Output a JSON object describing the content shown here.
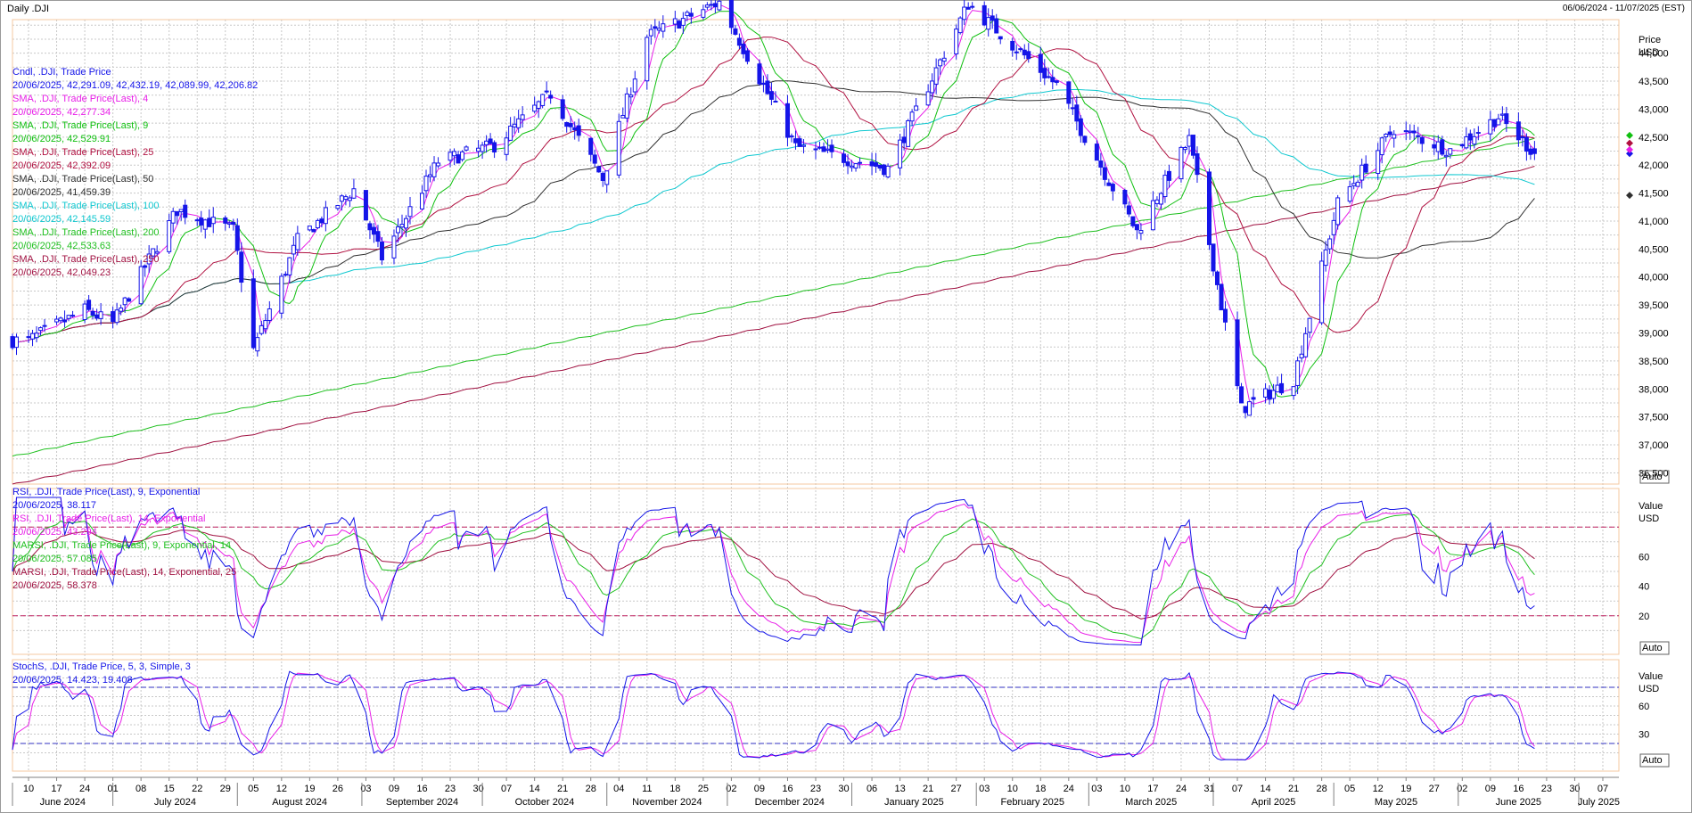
{
  "header": {
    "title": "Daily .DJI",
    "range": "06/06/2024 - 11/07/2025 (EST)"
  },
  "colors": {
    "bg": "#ffffff",
    "grid": "#c8c8c8",
    "candle": "#1515e8",
    "sma4": "#e81ee8",
    "sma9": "#10c010",
    "sma25": "#b01040",
    "sma50": "#303030",
    "sma100": "#10c8d0",
    "sma200": "#20c020",
    "sma250": "#a01040",
    "rsi9": "#1515e8",
    "rsi14": "#e81ee8",
    "marsi9": "#20c020",
    "marsi14": "#a01040",
    "stoch_k": "#1515e8",
    "stoch_d": "#e81ee8",
    "panel_border": "#f4c8a0",
    "ref_line": "#c02060"
  },
  "price_panel": {
    "axis_title": "Price",
    "axis_unit": "USD",
    "auto_label": "Auto",
    "legend": [
      {
        "title": "Cndl, .DJI, Trade Price",
        "value": "20/06/2025, 42,291.09, 42,432.19, 42,089.99, 42,206.82",
        "color": "#1515e8"
      },
      {
        "title": "SMA, .DJI, Trade Price(Last), 4",
        "value": "20/06/2025, 42,277.34",
        "color": "#e81ee8"
      },
      {
        "title": "SMA, .DJI, Trade Price(Last), 9",
        "value": "20/06/2025, 42,529.91",
        "color": "#10c010"
      },
      {
        "title": "SMA, .DJI, Trade Price(Last), 25",
        "value": "20/06/2025, 42,392.09",
        "color": "#b01040"
      },
      {
        "title": "SMA, .DJI, Trade Price(Last), 50",
        "value": "20/06/2025, 41,459.39",
        "color": "#303030"
      },
      {
        "title": "SMA, .DJI, Trade Price(Last), 100",
        "value": "20/06/2025, 42,145.59",
        "color": "#10c8d0"
      },
      {
        "title": "SMA, .DJI, Trade Price(Last), 200",
        "value": "20/06/2025, 42,533.63",
        "color": "#20c020"
      },
      {
        "title": "SMA, .DJI, Trade Price(Last), 250",
        "value": "20/06/2025, 42,049.23",
        "color": "#a01040"
      }
    ],
    "ticks": [
      "44,000",
      "43,500",
      "43,000",
      "42,500",
      "42,000",
      "41,500",
      "41,000",
      "40,500",
      "40,000",
      "39,500",
      "39,000",
      "38,500",
      "38,000",
      "37,500",
      "37,000",
      "36,500"
    ]
  },
  "rsi_panel": {
    "axis_title": "Value",
    "axis_unit": "USD",
    "auto_label": "Auto",
    "legend": [
      {
        "title": "RSI, .DJI, Trade Price(Last), 9, Exponential",
        "value": "20/06/2025, 38.117",
        "color": "#1515e8"
      },
      {
        "title": "RSI, .DJI, Trade Price(Last), 14, Exponential",
        "value": "20/06/2025, 43.294",
        "color": "#e81ee8"
      },
      {
        "title": "MARSI, .DJI, Trade Price(Last), 9, Exponential, 14",
        "value": "20/06/2025, 57.085",
        "color": "#20c020"
      },
      {
        "title": "MARSI, .DJI, Trade Price(Last), 14, Exponential, 25",
        "value": "20/06/2025, 58.378",
        "color": "#a01040"
      }
    ],
    "ticks": [
      "60",
      "40",
      "20"
    ]
  },
  "stoch_panel": {
    "axis_title": "Value",
    "axis_unit": "USD",
    "auto_label": "Auto",
    "legend": [
      {
        "title": "StochS, .DJI, Trade Price, 5, 3, Simple, 3",
        "value": "20/06/2025, 14.423, 19.408",
        "color": "#1515e8"
      }
    ],
    "ticks": [
      "60",
      "30"
    ]
  },
  "x_axis": {
    "days": [
      "10",
      "17",
      "24",
      "01",
      "08",
      "15",
      "22",
      "29",
      "05",
      "12",
      "19",
      "26",
      "03",
      "09",
      "16",
      "23",
      "30",
      "07",
      "14",
      "21",
      "28",
      "04",
      "11",
      "18",
      "25",
      "02",
      "09",
      "16",
      "23",
      "30",
      "06",
      "13",
      "21",
      "27",
      "03",
      "10",
      "18",
      "24",
      "03",
      "10",
      "17",
      "24",
      "31",
      "07",
      "14",
      "21",
      "28",
      "05",
      "12",
      "19",
      "27",
      "02",
      "09",
      "16",
      "23",
      "30",
      "07"
    ],
    "months": [
      "June 2024",
      "July 2024",
      "August 2024",
      "September 2024",
      "October 2024",
      "November 2024",
      "December 2024",
      "January 2025",
      "February 2025",
      "March 2025",
      "April 2025",
      "May 2025",
      "June 2025",
      "July 2025"
    ]
  },
  "chart_data": [
    {
      "type": "candlestick",
      "title": "Daily .DJI",
      "ylabel": "Price USD",
      "ylim": [
        36300,
        44600
      ],
      "x_range": [
        "2024-06-06",
        "2025-07-11"
      ],
      "points": [
        {
          "d": "2024-06-10",
          "c": 38868
        },
        {
          "d": "2024-06-24",
          "c": 39411
        },
        {
          "d": "2024-07-01",
          "c": 39170
        },
        {
          "d": "2024-07-17",
          "c": 41198
        },
        {
          "d": "2024-07-31",
          "c": 40842
        },
        {
          "d": "2024-08-05",
          "c": 38703
        },
        {
          "d": "2024-08-16",
          "c": 40659
        },
        {
          "d": "2024-08-30",
          "c": 41563
        },
        {
          "d": "2024-09-06",
          "c": 40345
        },
        {
          "d": "2024-09-20",
          "c": 42063
        },
        {
          "d": "2024-10-04",
          "c": 42352
        },
        {
          "d": "2024-10-18",
          "c": 43275
        },
        {
          "d": "2024-10-31",
          "c": 41763
        },
        {
          "d": "2024-11-11",
          "c": 44293
        },
        {
          "d": "2024-11-29",
          "c": 44911
        },
        {
          "d": "2024-12-18",
          "c": 42327
        },
        {
          "d": "2025-01-10",
          "c": 41938
        },
        {
          "d": "2025-01-30",
          "c": 44882
        },
        {
          "d": "2025-02-21",
          "c": 43428
        },
        {
          "d": "2025-03-13",
          "c": 40813
        },
        {
          "d": "2025-03-26",
          "c": 42454
        },
        {
          "d": "2025-04-08",
          "c": 37645
        },
        {
          "d": "2025-04-21",
          "c": 38170
        },
        {
          "d": "2025-05-02",
          "c": 41317
        },
        {
          "d": "2025-05-16",
          "c": 42655
        },
        {
          "d": "2025-05-30",
          "c": 42270
        },
        {
          "d": "2025-06-11",
          "c": 42865
        },
        {
          "d": "2025-06-20",
          "c": 42207
        }
      ],
      "last": {
        "open": 42291.09,
        "high": 42432.19,
        "low": 42089.99,
        "close": 42206.82
      }
    },
    {
      "type": "line",
      "title": "RSI",
      "ylim": [
        0,
        100
      ],
      "reference_lines": [
        80,
        20
      ],
      "series": [
        {
          "name": "RSI, .DJI, Trade Price(Last), 9, Exponential",
          "last": 38.117
        },
        {
          "name": "RSI, .DJI, Trade Price(Last), 14, Exponential",
          "last": 43.294
        },
        {
          "name": "MARSI, .DJI, Trade Price(Last), 9, Exponential, 14",
          "last": 57.085
        },
        {
          "name": "MARSI, .DJI, Trade Price(Last), 14, Exponential, 25",
          "last": 58.378
        }
      ]
    },
    {
      "type": "line",
      "title": "StochS",
      "ylim": [
        0,
        100
      ],
      "reference_lines": [
        80,
        20
      ],
      "series": [
        {
          "name": "StochS, .DJI, Trade Price, 5, 3, Simple, 3",
          "last_k": 14.423,
          "last_d": 19.408
        }
      ]
    }
  ]
}
